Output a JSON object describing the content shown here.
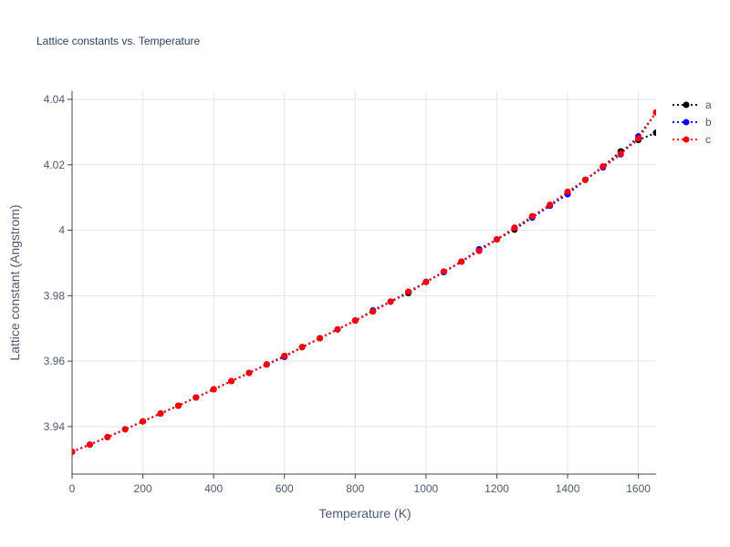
{
  "chart_data": {
    "type": "line",
    "title": "Lattice constants vs. Temperature",
    "xlabel": "Temperature (K)",
    "ylabel": "Lattice constant (Angstrom)",
    "xlim": [
      0,
      1650
    ],
    "ylim": [
      3.9255,
      4.0425
    ],
    "x_ticks": [
      0,
      200,
      400,
      600,
      800,
      1000,
      1200,
      1400,
      1600
    ],
    "y_ticks": [
      3.94,
      3.96,
      3.98,
      4.0,
      4.02,
      4.04
    ],
    "y_tick_labels": [
      "3.94",
      "3.96",
      "3.98",
      "4",
      "4.02",
      "4.04"
    ],
    "grid": true,
    "legend_position": "top-right",
    "x": [
      0,
      50,
      100,
      150,
      200,
      250,
      300,
      350,
      400,
      450,
      500,
      550,
      600,
      650,
      700,
      750,
      800,
      850,
      900,
      950,
      1000,
      1050,
      1100,
      1150,
      1200,
      1250,
      1300,
      1350,
      1400,
      1450,
      1500,
      1550,
      1600,
      1650
    ],
    "series": [
      {
        "name": "a",
        "color": "#000000",
        "values": [
          3.9323,
          3.9345,
          3.9368,
          3.9392,
          3.9416,
          3.944,
          3.9464,
          3.9489,
          3.9514,
          3.9539,
          3.9564,
          3.959,
          3.9616,
          3.9643,
          3.967,
          3.9697,
          3.9724,
          3.9752,
          3.9782,
          3.9808,
          3.9842,
          3.9872,
          3.9904,
          3.9937,
          3.9972,
          4.0002,
          4.0039,
          4.0075,
          4.0113,
          4.0154,
          4.0195,
          4.0241,
          4.0276,
          4.0298
        ]
      },
      {
        "name": "b",
        "color": "#0000ff",
        "values": [
          3.9323,
          3.9345,
          3.9368,
          3.9392,
          3.9416,
          3.944,
          3.9464,
          3.9489,
          3.9514,
          3.9539,
          3.9564,
          3.959,
          3.9613,
          3.9643,
          3.967,
          3.9697,
          3.9724,
          3.9755,
          3.9782,
          3.9812,
          3.9842,
          3.9872,
          3.9904,
          3.9942,
          3.9972,
          4.0008,
          4.0039,
          4.0075,
          4.011,
          4.0154,
          4.0192,
          4.0232,
          4.0287,
          4.036
        ]
      },
      {
        "name": "c",
        "color": "#ff0000",
        "values": [
          3.9323,
          3.9345,
          3.9368,
          3.9392,
          3.9416,
          3.944,
          3.9464,
          3.9489,
          3.9514,
          3.9539,
          3.9564,
          3.959,
          3.9616,
          3.9643,
          3.967,
          3.9697,
          3.9724,
          3.9752,
          3.9782,
          3.9812,
          3.9842,
          3.9874,
          3.9904,
          3.9937,
          3.9972,
          4.0007,
          4.0043,
          4.0078,
          4.0118,
          4.0154,
          4.0195,
          4.0234,
          4.028,
          4.036
        ]
      }
    ]
  }
}
